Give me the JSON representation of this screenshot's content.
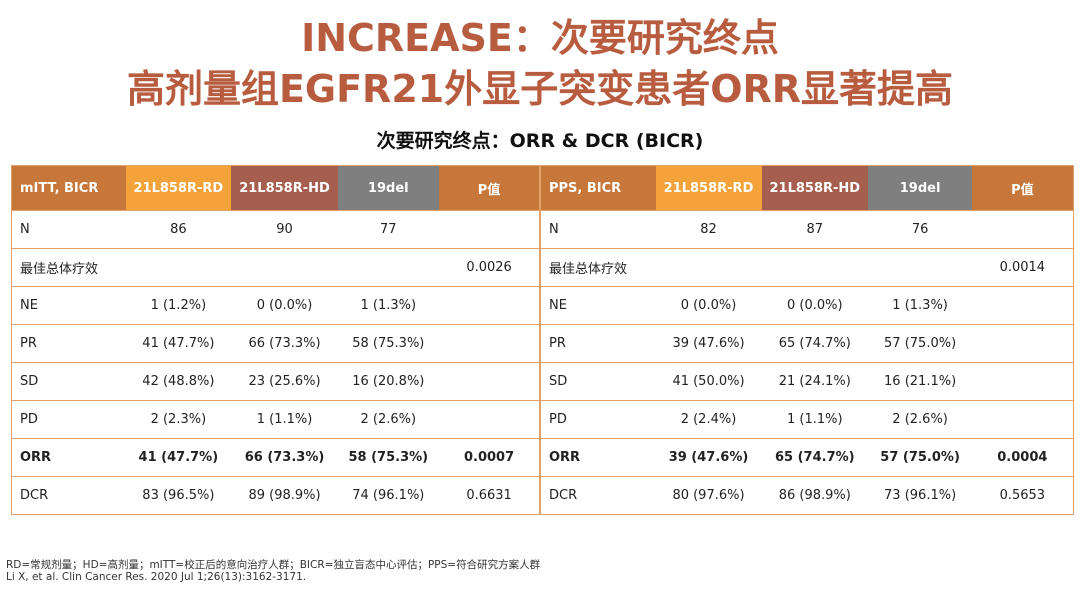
{
  "title": {
    "line1": "INCREASE：次要研究终点",
    "line2": "高剂量组EGFR21外显子突变患者ORR显著提高"
  },
  "subtitle": "次要研究终点：ORR & DCR (BICR)",
  "tables": [
    {
      "header": [
        "mITT, BICR",
        "21L858R-RD",
        "21L858R-HD",
        "19del",
        "P值"
      ],
      "rows": [
        {
          "label": "N",
          "rd": "86",
          "hd": "90",
          "del": "77",
          "p": ""
        },
        {
          "label": "最佳总体疗效",
          "rd": "",
          "hd": "",
          "del": "",
          "p": "0.0026"
        },
        {
          "label": "NE",
          "rd": "1 (1.2%)",
          "hd": "0 (0.0%)",
          "del": "1 (1.3%)",
          "p": ""
        },
        {
          "label": "PR",
          "rd": "41 (47.7%)",
          "hd": "66 (73.3%)",
          "del": "58 (75.3%)",
          "p": ""
        },
        {
          "label": "SD",
          "rd": "42 (48.8%)",
          "hd": "23 (25.6%)",
          "del": "16 (20.8%)",
          "p": ""
        },
        {
          "label": "PD",
          "rd": "2 (2.3%)",
          "hd": "1 (1.1%)",
          "del": "2 (2.6%)",
          "p": ""
        },
        {
          "label": "ORR",
          "rd": "41 (47.7%)",
          "hd": "66 (73.3%)",
          "del": "58 (75.3%)",
          "p": "0.0007"
        },
        {
          "label": "DCR",
          "rd": "83 (96.5%)",
          "hd": "89 (98.9%)",
          "del": "74 (96.1%)",
          "p": "0.6631"
        }
      ]
    },
    {
      "header": [
        "PPS, BICR",
        "21L858R-RD",
        "21L858R-HD",
        "19del",
        "P值"
      ],
      "rows": [
        {
          "label": "N",
          "rd": "82",
          "hd": "87",
          "del": "76",
          "p": ""
        },
        {
          "label": "最佳总体疗效",
          "rd": "",
          "hd": "",
          "del": "",
          "p": "0.0014"
        },
        {
          "label": "NE",
          "rd": "0 (0.0%)",
          "hd": "0 (0.0%)",
          "del": "1 (1.3%)",
          "p": ""
        },
        {
          "label": "PR",
          "rd": "39 (47.6%)",
          "hd": "65 (74.7%)",
          "del": "57 (75.0%)",
          "p": ""
        },
        {
          "label": "SD",
          "rd": "41 (50.0%)",
          "hd": "21 (24.1%)",
          "del": "16 (21.1%)",
          "p": ""
        },
        {
          "label": "PD",
          "rd": "2 (2.4%)",
          "hd": "1 (1.1%)",
          "del": "2 (2.6%)",
          "p": ""
        },
        {
          "label": "ORR",
          "rd": "39 (47.6%)",
          "hd": "65 (74.7%)",
          "del": "57 (75.0%)",
          "p": "0.0004"
        },
        {
          "label": "DCR",
          "rd": "80 (97.6%)",
          "hd": "86 (98.9%)",
          "del": "73 (96.1%)",
          "p": "0.5653"
        }
      ]
    }
  ],
  "footnotes": {
    "abbrev": "RD=常规剂量；HD=高剂量；mITT=校正后的意向治疗人群；BICR=独立盲态中心评估；PPS=符合研究方案人群",
    "reference": "Li X, et al. Clin Cancer Res. 2020 Jul 1;26(13):3162-3171."
  },
  "colors": {
    "title": "#b85c40",
    "header_main": "#c7773a",
    "header_rd": "#f3a33a",
    "header_hd": "#a65e4e",
    "header_del": "#7f7f7f",
    "border": "#e2a06b"
  }
}
